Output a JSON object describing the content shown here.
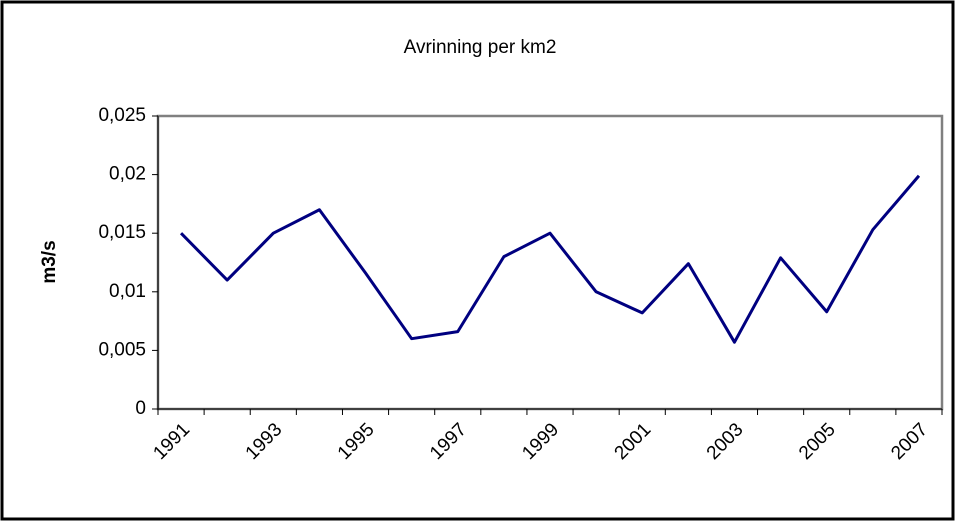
{
  "chart_data": {
    "type": "line",
    "title": "Avrinning per km2",
    "y_label": "m3/s",
    "categories": [
      "1991",
      null,
      "1993",
      null,
      "1995",
      null,
      "1997",
      null,
      "1999",
      null,
      "2001",
      null,
      "2003",
      null,
      "2005",
      null,
      "2007"
    ],
    "values": [
      0.015,
      0.011,
      0.015,
      0.017,
      0.0116,
      0.006,
      0.0066,
      0.013,
      0.015,
      0.01,
      0.0082,
      0.0124,
      0.0057,
      0.0129,
      0.0083,
      0.0153,
      0.0199
    ],
    "color": "#000080",
    "ylim": [
      0,
      0.025
    ],
    "yticks": [
      0,
      {
        "value": 0.005,
        "label": "0,005"
      },
      {
        "value": 0.01,
        "label": "0,01"
      },
      {
        "value": 0.015,
        "label": "0,015"
      },
      {
        "value": 0.02,
        "label": "0,02"
      },
      {
        "value": 0.025,
        "label": "0,025"
      }
    ],
    "grid": false
  }
}
